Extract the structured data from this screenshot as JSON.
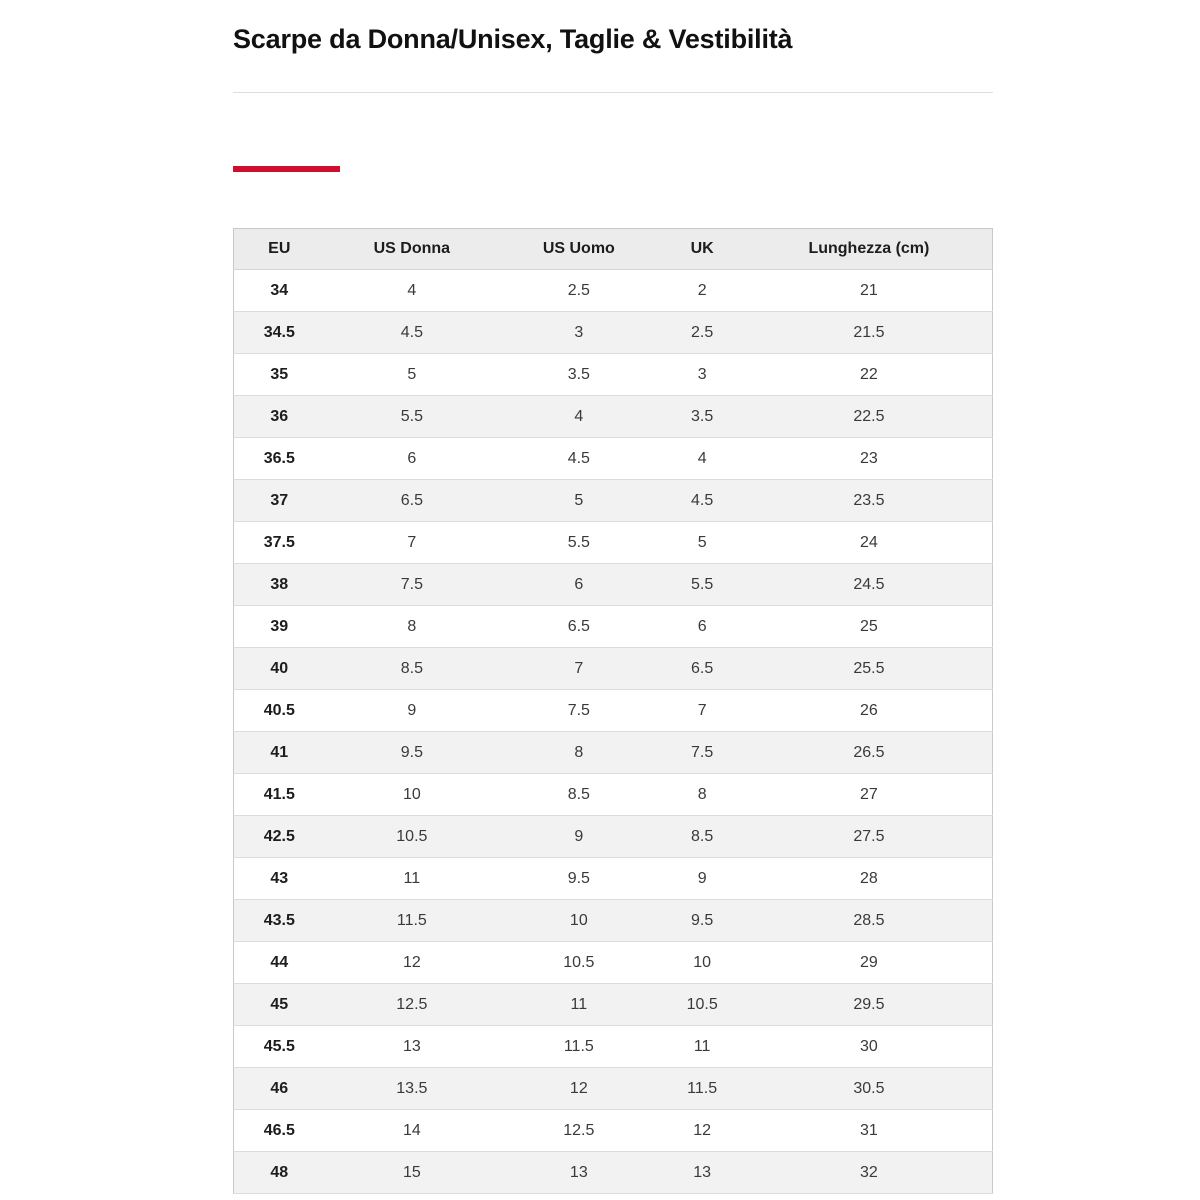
{
  "page": {
    "title": "Scarpe da Donna/Unisex, Taglie & Vestibilità"
  },
  "accent_color": "#ce0e2d",
  "table": {
    "headers": [
      "EU",
      "US Donna",
      "US Uomo",
      "UK",
      "Lunghezza (cm)"
    ],
    "rows": [
      [
        "34",
        "4",
        "2.5",
        "2",
        "21"
      ],
      [
        "34.5",
        "4.5",
        "3",
        "2.5",
        "21.5"
      ],
      [
        "35",
        "5",
        "3.5",
        "3",
        "22"
      ],
      [
        "36",
        "5.5",
        "4",
        "3.5",
        "22.5"
      ],
      [
        "36.5",
        "6",
        "4.5",
        "4",
        "23"
      ],
      [
        "37",
        "6.5",
        "5",
        "4.5",
        "23.5"
      ],
      [
        "37.5",
        "7",
        "5.5",
        "5",
        "24"
      ],
      [
        "38",
        "7.5",
        "6",
        "5.5",
        "24.5"
      ],
      [
        "39",
        "8",
        "6.5",
        "6",
        "25"
      ],
      [
        "40",
        "8.5",
        "7",
        "6.5",
        "25.5"
      ],
      [
        "40.5",
        "9",
        "7.5",
        "7",
        "26"
      ],
      [
        "41",
        "9.5",
        "8",
        "7.5",
        "26.5"
      ],
      [
        "41.5",
        "10",
        "8.5",
        "8",
        "27"
      ],
      [
        "42.5",
        "10.5",
        "9",
        "8.5",
        "27.5"
      ],
      [
        "43",
        "11",
        "9.5",
        "9",
        "28"
      ],
      [
        "43.5",
        "11.5",
        "10",
        "9.5",
        "28.5"
      ],
      [
        "44",
        "12",
        "10.5",
        "10",
        "29"
      ],
      [
        "45",
        "12.5",
        "11",
        "10.5",
        "29.5"
      ],
      [
        "45.5",
        "13",
        "11.5",
        "11",
        "30"
      ],
      [
        "46",
        "13.5",
        "12",
        "11.5",
        "30.5"
      ],
      [
        "46.5",
        "14",
        "12.5",
        "12",
        "31"
      ],
      [
        "48",
        "15",
        "13",
        "13",
        "32"
      ]
    ]
  }
}
